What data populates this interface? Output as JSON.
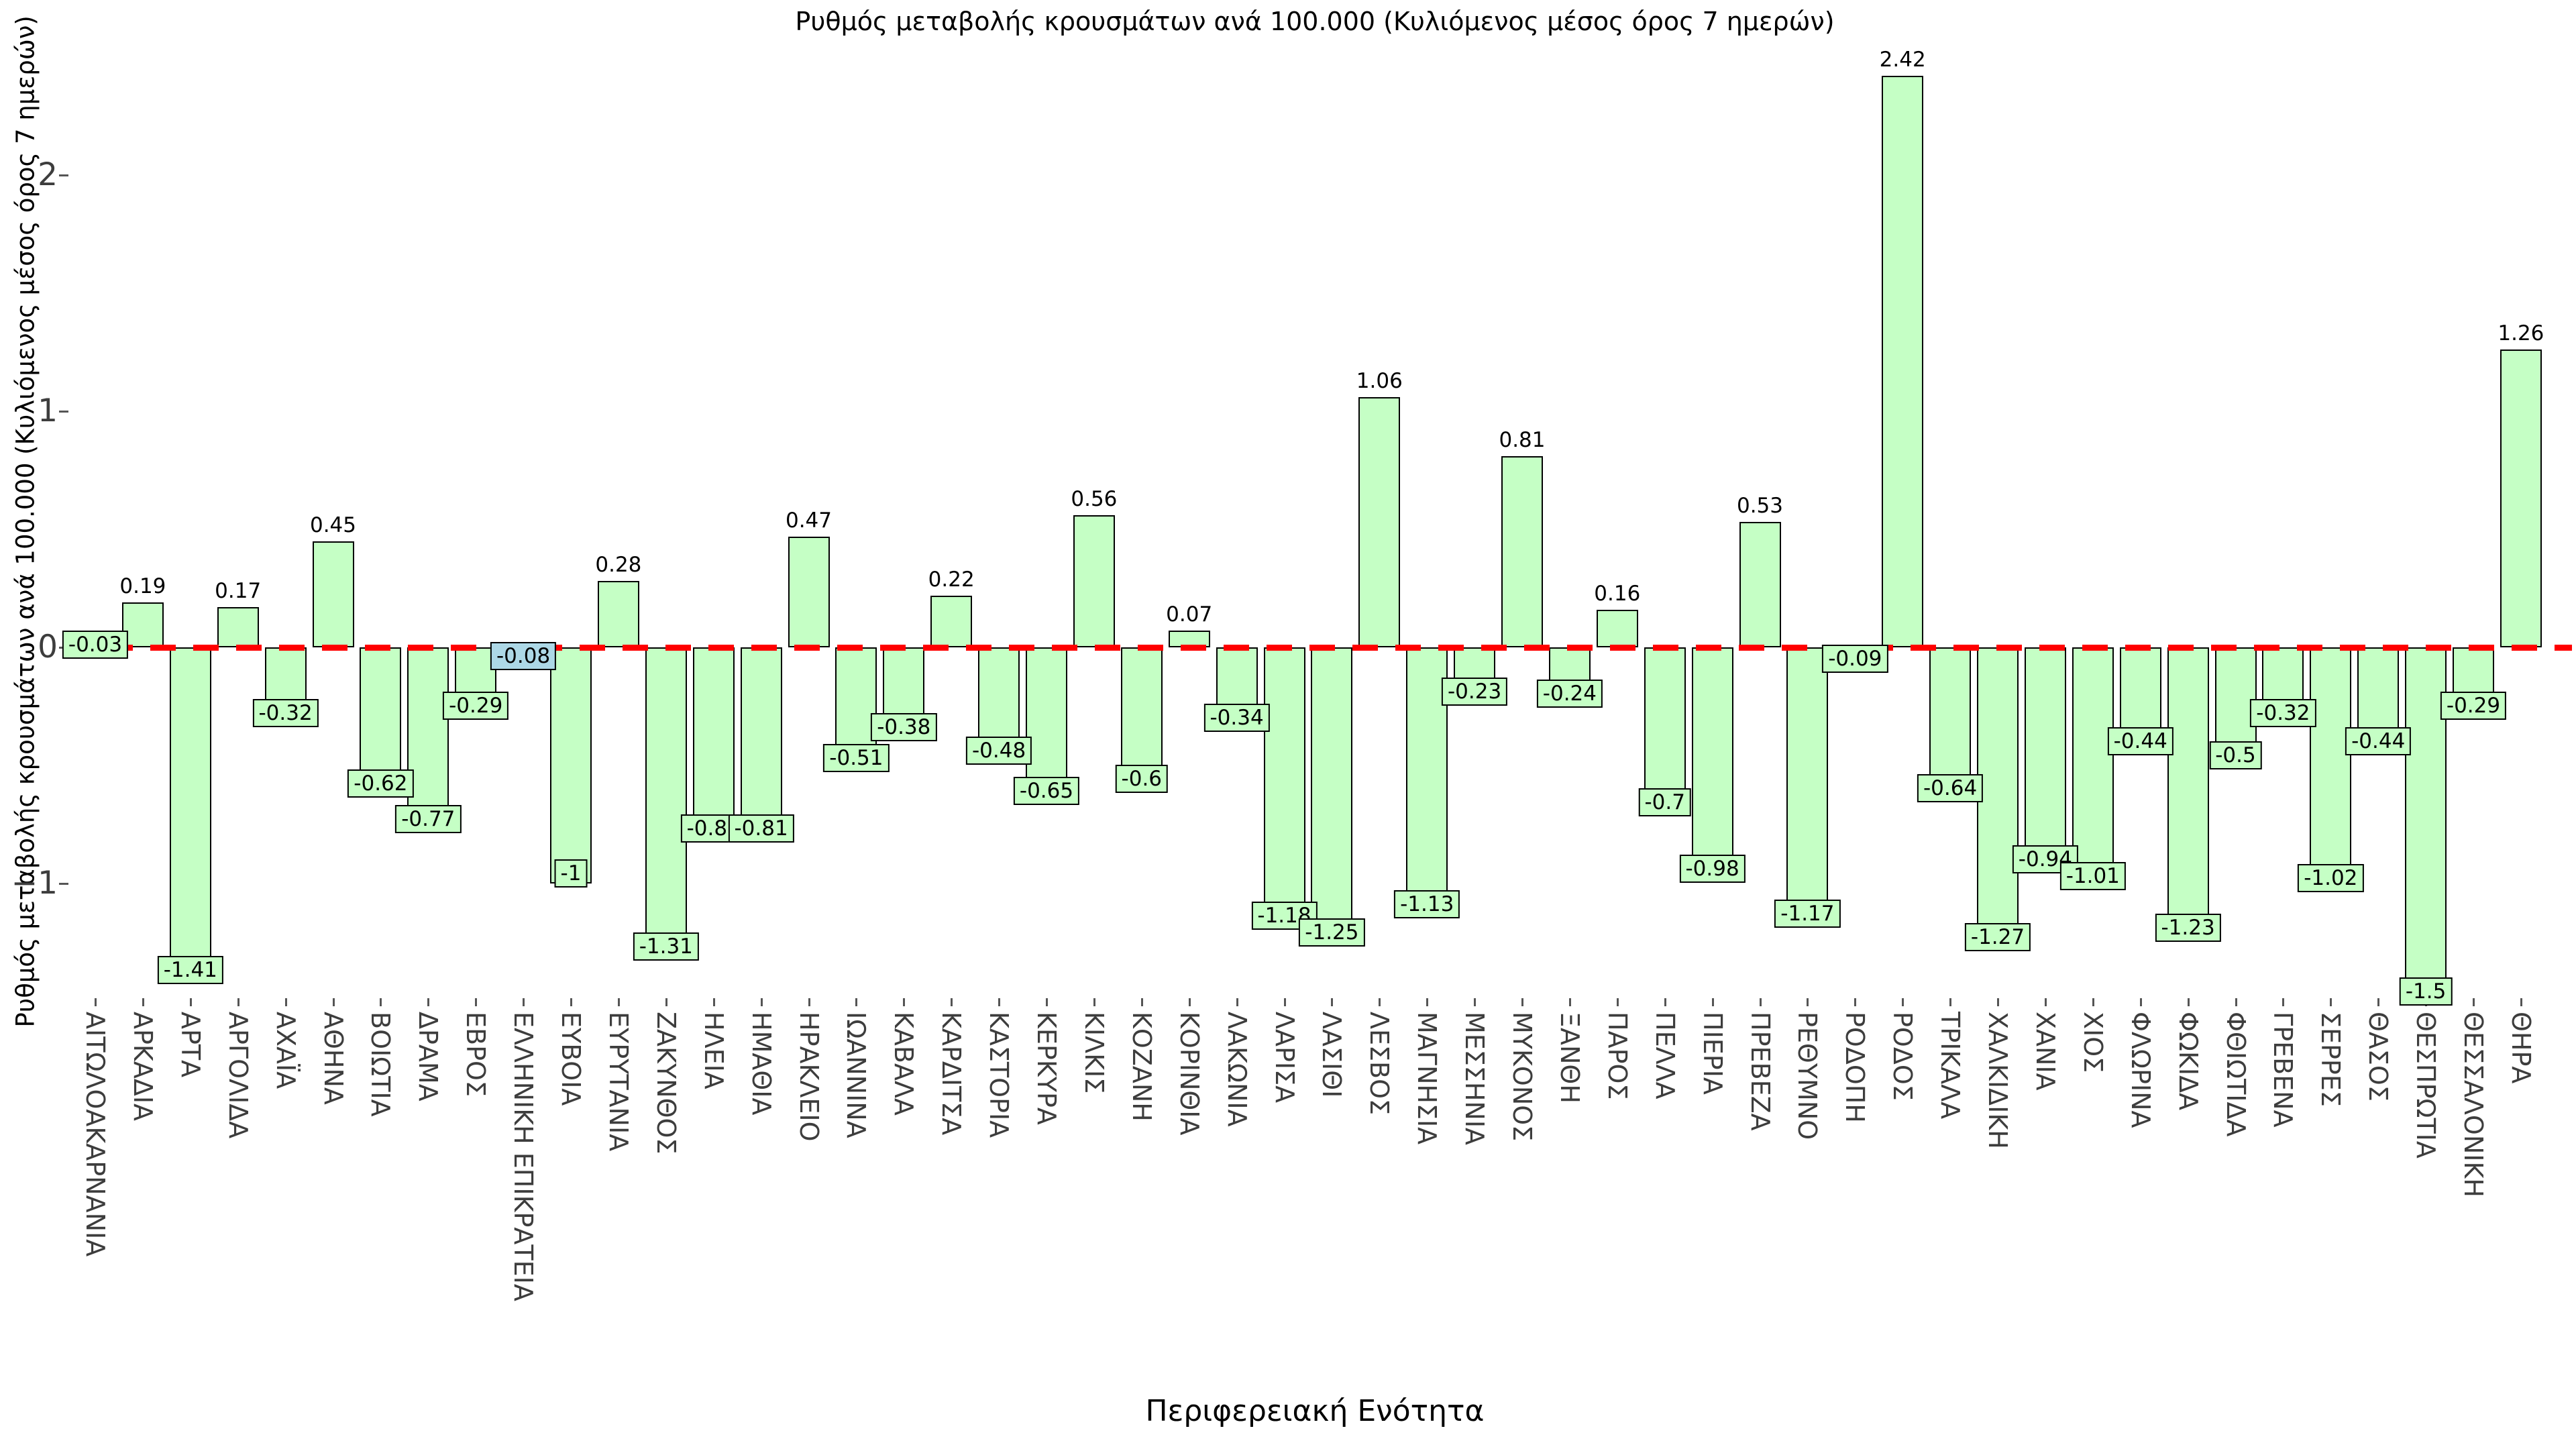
{
  "colors": {
    "bar_fill": "#c5ffc5",
    "bar_border": "#000000",
    "highlight_fill": "#add8e6",
    "zero_line": "#ff0000",
    "tick_text": "#3d3d3d",
    "text": "#000000",
    "background": "#ffffff"
  },
  "chart_data": {
    "type": "bar",
    "title": "Ρυθμός μεταβολής κρουσμάτων ανά 100.000 (Κυλιόμενος μέσος όρος 7 ημερών)",
    "xlabel": "Περιφερειακή Ενότητα",
    "ylabel": "Ρυθμός μεταβολής κρουσμάτων ανά 100.000 (Κυλιόμενος μέσος όρος 7 ημερών)",
    "ylim": [
      -1.55,
      2.6
    ],
    "grid": false,
    "legend": "none",
    "zero_line": {
      "value": 0,
      "style": "dashed",
      "color": "#ff0000"
    },
    "y_ticks": {
      "values": [
        2,
        1,
        0,
        -1
      ],
      "labels": [
        "2",
        "1",
        "0",
        "−1"
      ]
    },
    "highlight_category": "ΕΛΛΗΝΙΚΗ ΕΠΙΚΡΑΤΕΙΑ",
    "highlight_index": 9,
    "categories": [
      "ΑΙΤΩΛΟΑΚΑΡΝΑΝΙΑ",
      "ΑΡΚΑΔΙΑ",
      "ΑΡΤΑ",
      "ΑΡΓΟΛΙΔΑ",
      "ΑΧΑΪΑ",
      "ΑΘΗΝΑ",
      "ΒΟΙΩΤΙΑ",
      "ΔΡΑΜΑ",
      "ΕΒΡΟΣ",
      "ΕΛΛΗΝΙΚΗ ΕΠΙΚΡΑΤΕΙΑ",
      "ΕΥΒΟΙΑ",
      "ΕΥΡΥΤΑΝΙΑ",
      "ΖΑΚΥΝΘΟΣ",
      "ΗΛΕΙΑ",
      "ΗΜΑΘΙΑ",
      "ΗΡΑΚΛΕΙΟ",
      "ΙΩΑΝΝΙΝΑ",
      "ΚΑΒΑΛΑ",
      "ΚΑΡΔΙΤΣΑ",
      "ΚΑΣΤΟΡΙΑ",
      "ΚΕΡΚΥΡΑ",
      "ΚΙΛΚΙΣ",
      "ΚΟΖΑΝΗ",
      "ΚΟΡΙΝΘΙΑ",
      "ΛΑΚΩΝΙΑ",
      "ΛΑΡΙΣΑ",
      "ΛΑΣΙΘΙ",
      "ΛΕΣΒΟΣ",
      "ΜΑΓΝΗΣΙΑ",
      "ΜΕΣΣΗΝΙΑ",
      "ΜΥΚΟΝΟΣ",
      "ΞΑΝΘΗ",
      "ΠΑΡΟΣ",
      "ΠΕΛΛΑ",
      "ΠΙΕΡΙΑ",
      "ΠΡΕΒΕΖΑ",
      "ΡΕΘΥΜΝΟ",
      "ΡΟΔΟΠΗ",
      "ΡΟΔΟΣ",
      "ΤΡΙΚΑΛΑ",
      "ΧΑΛΚΙΔΙΚΗ",
      "ΧΑΝΙΑ",
      "ΧΙΟΣ",
      "ΦΛΩΡΙΝΑ",
      "ΦΩΚΙΔΑ",
      "ΦΘΙΩΤΙΔΑ",
      "ΓΡΕΒΕΝΑ",
      "ΣΕΡΡΕΣ",
      "ΘΑΣΟΣ",
      "ΘΕΣΠΡΩΤΙΑ",
      "ΘΕΣΣΑΛΟΝΙΚΗ",
      "ΘΗΡΑ"
    ],
    "values": [
      -0.03,
      0.19,
      -1.41,
      0.17,
      -0.32,
      0.45,
      -0.62,
      -0.77,
      -0.29,
      -0.08,
      -1,
      0.28,
      -1.31,
      -0.81,
      -0.81,
      0.47,
      -0.51,
      -0.38,
      0.22,
      -0.48,
      -0.65,
      0.56,
      -0.6,
      0.07,
      -0.34,
      -1.18,
      -1.25,
      1.06,
      -1.13,
      -0.23,
      0.81,
      -0.24,
      0.16,
      -0.7,
      -0.98,
      0.53,
      -1.17,
      -0.09,
      2.42,
      -0.64,
      -1.27,
      -0.94,
      -1.01,
      -0.44,
      -1.23,
      -0.5,
      -0.32,
      -1.02,
      -0.44,
      -1.5,
      -0.29,
      1.26
    ],
    "value_labels": [
      "-0.03",
      "0.19",
      "-1.41",
      "0.17",
      "-0.32",
      "0.45",
      "-0.62",
      "-0.77",
      "-0.29",
      "-0.08",
      "-1",
      "0.28",
      "-1.31",
      "-0.81",
      "-0.81",
      "0.47",
      "-0.51",
      "-0.38",
      "0.22",
      "-0.48",
      "-0.65",
      "0.56",
      "-0.6",
      "0.07",
      "-0.34",
      "-1.18",
      "-1.25",
      "1.06",
      "-1.13",
      "-0.23",
      "0.81",
      "-0.24",
      "0.16",
      "-0.7",
      "-0.98",
      "0.53",
      "-1.17",
      "-0.09",
      "2.42",
      "-0.64",
      "-1.27",
      "-0.94",
      "-1.01",
      "-0.44",
      "-1.23",
      "-0.5",
      "-0.32",
      "-1.02",
      "-0.44",
      "-1.5",
      "-0.29",
      "1.26"
    ]
  }
}
